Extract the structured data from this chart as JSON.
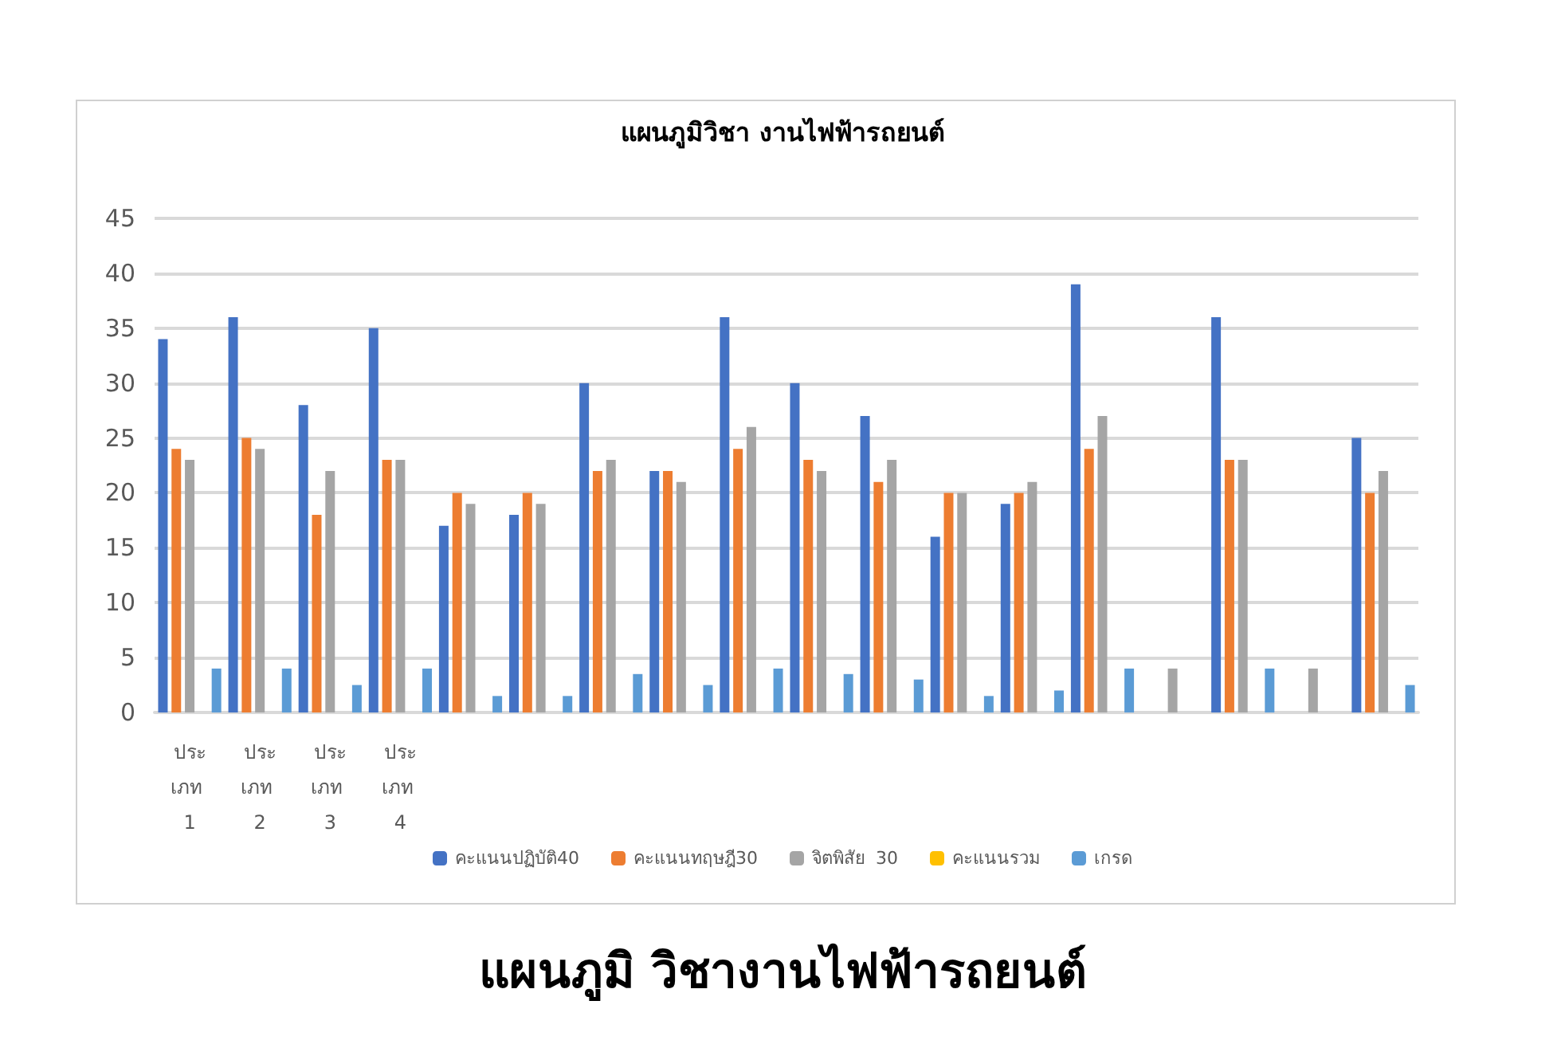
{
  "chart_data": {
    "type": "bar",
    "title": "แผนภูมิวิชา งานไฟฟ้ารถยนต์",
    "categories": [
      "ประเภท 1",
      "ประเภท 2",
      "ประเภท 3",
      "ประเภท 4",
      null,
      null,
      null,
      null,
      null,
      null,
      null,
      null,
      null,
      null,
      null,
      null,
      null,
      null
    ],
    "series": [
      {
        "name": "คะแนนปฏิบัติ40",
        "color": "#4472c4",
        "values": [
          34,
          36,
          28,
          35,
          17,
          18,
          30,
          22,
          36,
          30,
          27,
          16,
          19,
          39,
          null,
          36,
          null,
          25
        ]
      },
      {
        "name": "คะแนนทฤษฎี30",
        "color": "#ed7d31",
        "values": [
          24,
          25,
          18,
          23,
          20,
          20,
          22,
          22,
          24,
          23,
          21,
          20,
          20,
          24,
          null,
          23,
          null,
          20
        ]
      },
      {
        "name": "จิตพิสัย  30",
        "color": "#a5a5a5",
        "values": [
          23,
          24,
          22,
          23,
          19,
          19,
          23,
          21,
          26,
          22,
          23,
          20,
          21,
          27,
          4,
          23,
          4,
          22
        ]
      },
      {
        "name": "คะแนนรวม",
        "color": "#ffc000",
        "values": [
          null,
          null,
          null,
          null,
          null,
          null,
          null,
          null,
          null,
          null,
          null,
          null,
          null,
          null,
          null,
          null,
          null,
          null
        ]
      },
      {
        "name": "เกรด",
        "color": "#5b9bd5",
        "values": [
          4,
          4,
          2.5,
          4,
          1.5,
          1.5,
          3.5,
          2.5,
          4,
          3.5,
          3,
          1.5,
          2,
          4,
          null,
          4,
          null,
          2.5
        ]
      }
    ],
    "ylim": [
      0,
      45
    ],
    "yticks": [
      0,
      5,
      10,
      15,
      20,
      25,
      30,
      35,
      40,
      45
    ],
    "grid": "y",
    "legend": "bottom",
    "annotations": [
      "แผนภูมิ วิชางานไฟฟ้ารถยนต์"
    ]
  }
}
